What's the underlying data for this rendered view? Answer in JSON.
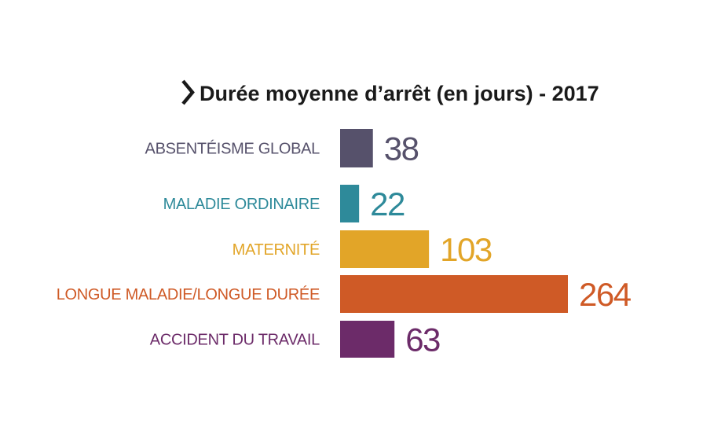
{
  "chart_data": {
    "type": "bar",
    "orientation": "horizontal",
    "title": "Durée moyenne d’arrêt (en jours) - 2017",
    "categories": [
      "ABSENTÉISME GLOBAL",
      "MALADIE ORDINAIRE",
      "MATERNITÉ",
      "LONGUE MALADIE/LONGUE DURÉE",
      "ACCIDENT DU TRAVAIL"
    ],
    "values": [
      38,
      22,
      103,
      264,
      63
    ],
    "value_labels": [
      "38",
      "22",
      "103",
      "264",
      "63"
    ],
    "colors": [
      "#56516b",
      "#2e8a9a",
      "#e2a528",
      "#cf5a26",
      "#6c2b69"
    ],
    "xlabel": "",
    "ylabel": "",
    "xlim": [
      0,
      264
    ],
    "grid": false,
    "legend": "none"
  },
  "title_arrow_color": "#1a1a1a"
}
